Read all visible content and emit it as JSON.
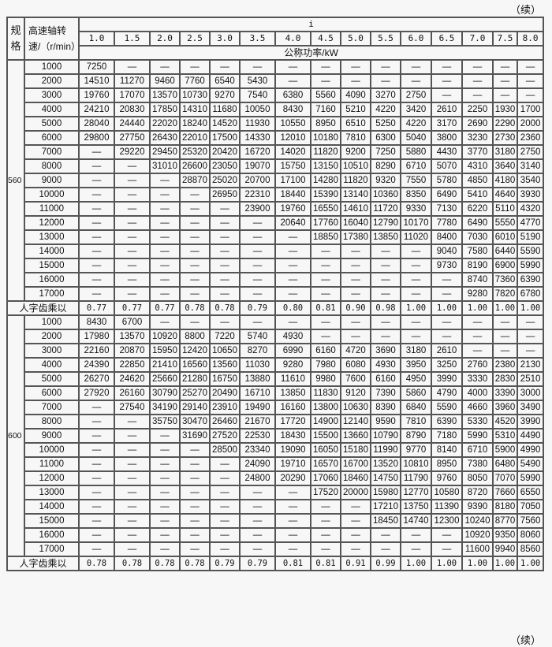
{
  "continued_label": "（续）",
  "header": {
    "spec": "规格",
    "speed": "高速轴转速/（r/min）",
    "ratio_symbol": "i",
    "ratios": [
      "1.0",
      "1.5",
      "2.0",
      "2.5",
      "3.0",
      "3.5",
      "4.0",
      "4.5",
      "5.0",
      "5.5",
      "6.0",
      "6.5",
      "7.0",
      "7.5",
      "8.0"
    ],
    "power_unit": "公称功率/kW"
  },
  "sections": [
    {
      "spec": "560",
      "rows": [
        {
          "speed": "1000",
          "values": [
            "7250",
            "—",
            "—",
            "—",
            "—",
            "—",
            "—",
            "—",
            "—",
            "—",
            "—",
            "—",
            "—",
            "—",
            "—"
          ]
        },
        {
          "speed": "2000",
          "values": [
            "14510",
            "11270",
            "9460",
            "7760",
            "6540",
            "5430",
            "—",
            "—",
            "—",
            "—",
            "—",
            "—",
            "—",
            "—",
            "—"
          ]
        },
        {
          "speed": "3000",
          "values": [
            "19760",
            "17070",
            "13570",
            "10730",
            "9270",
            "7540",
            "6380",
            "5560",
            "4090",
            "3270",
            "2750",
            "—",
            "—",
            "—",
            "—"
          ]
        },
        {
          "speed": "4000",
          "values": [
            "24210",
            "20830",
            "17850",
            "14310",
            "11680",
            "10050",
            "8430",
            "7160",
            "5210",
            "4220",
            "3420",
            "2610",
            "2250",
            "1930",
            "1700"
          ]
        },
        {
          "speed": "5000",
          "values": [
            "28040",
            "24440",
            "22020",
            "18240",
            "14520",
            "11930",
            "10550",
            "8950",
            "6510",
            "5250",
            "4220",
            "3170",
            "2690",
            "2290",
            "2000"
          ]
        },
        {
          "speed": "6000",
          "values": [
            "29800",
            "27750",
            "26430",
            "22010",
            "17500",
            "14330",
            "12010",
            "10180",
            "7810",
            "6300",
            "5040",
            "3800",
            "3230",
            "2730",
            "2360"
          ]
        },
        {
          "speed": "7000",
          "values": [
            "—",
            "29220",
            "29450",
            "25320",
            "20420",
            "16720",
            "14020",
            "11820",
            "9200",
            "7250",
            "5880",
            "4430",
            "3770",
            "3180",
            "2750"
          ]
        },
        {
          "speed": "8000",
          "values": [
            "—",
            "—",
            "31010",
            "26600",
            "23050",
            "19070",
            "15750",
            "13150",
            "10510",
            "8290",
            "6710",
            "5070",
            "4310",
            "3640",
            "3140"
          ]
        },
        {
          "speed": "9000",
          "values": [
            "—",
            "—",
            "—",
            "28870",
            "25020",
            "20700",
            "17100",
            "14280",
            "11820",
            "9320",
            "7550",
            "5780",
            "4850",
            "4180",
            "3540"
          ]
        },
        {
          "speed": "10000",
          "values": [
            "—",
            "—",
            "—",
            "—",
            "26950",
            "22310",
            "18440",
            "15390",
            "13140",
            "10360",
            "8350",
            "6490",
            "5410",
            "4640",
            "3930"
          ]
        },
        {
          "speed": "11000",
          "values": [
            "—",
            "—",
            "—",
            "—",
            "—",
            "23900",
            "19760",
            "16550",
            "14610",
            "11720",
            "9330",
            "7130",
            "6220",
            "5110",
            "4320"
          ]
        },
        {
          "speed": "12000",
          "values": [
            "—",
            "—",
            "—",
            "—",
            "—",
            "—",
            "20640",
            "17760",
            "16040",
            "12790",
            "10170",
            "7780",
            "6490",
            "5550",
            "4770"
          ]
        },
        {
          "speed": "13000",
          "values": [
            "—",
            "—",
            "—",
            "—",
            "—",
            "—",
            "—",
            "18850",
            "17380",
            "13850",
            "11020",
            "8400",
            "7030",
            "6010",
            "5190"
          ]
        },
        {
          "speed": "14000",
          "values": [
            "—",
            "—",
            "—",
            "—",
            "—",
            "—",
            "—",
            "—",
            "—",
            "—",
            "—",
            "9040",
            "7580",
            "6440",
            "5590"
          ]
        },
        {
          "speed": "15000",
          "values": [
            "—",
            "—",
            "—",
            "—",
            "—",
            "—",
            "—",
            "—",
            "—",
            "—",
            "—",
            "9730",
            "8190",
            "6900",
            "5990"
          ]
        },
        {
          "speed": "16000",
          "values": [
            "—",
            "—",
            "—",
            "—",
            "—",
            "—",
            "—",
            "—",
            "—",
            "—",
            "—",
            "—",
            "8740",
            "7360",
            "6390"
          ]
        },
        {
          "speed": "17000",
          "values": [
            "—",
            "—",
            "—",
            "—",
            "—",
            "—",
            "—",
            "—",
            "—",
            "—",
            "—",
            "—",
            "9280",
            "7820",
            "6780"
          ]
        }
      ],
      "factor_label": "人字齿乘以",
      "factors": [
        "0.77",
        "0.77",
        "0.77",
        "0.78",
        "0.78",
        "0.79",
        "0.80",
        "0.81",
        "0.90",
        "0.98",
        "1.00",
        "1.00",
        "1.00",
        "1.00",
        "1.00"
      ]
    },
    {
      "spec": "600",
      "rows": [
        {
          "speed": "1000",
          "values": [
            "8430",
            "6700",
            "—",
            "—",
            "—",
            "—",
            "—",
            "—",
            "—",
            "—",
            "—",
            "—",
            "—",
            "—",
            "—"
          ]
        },
        {
          "speed": "2000",
          "values": [
            "17980",
            "13570",
            "10920",
            "8800",
            "7220",
            "5740",
            "4930",
            "—",
            "—",
            "—",
            "—",
            "—",
            "—",
            "—",
            "—"
          ]
        },
        {
          "speed": "3000",
          "values": [
            "22160",
            "20870",
            "15950",
            "12420",
            "10650",
            "8270",
            "6990",
            "6160",
            "4720",
            "3690",
            "3180",
            "2610",
            "—",
            "—",
            "—"
          ]
        },
        {
          "speed": "4000",
          "values": [
            "24390",
            "22850",
            "21410",
            "16560",
            "13560",
            "11030",
            "9280",
            "7980",
            "6080",
            "4930",
            "3950",
            "3250",
            "2760",
            "2380",
            "2130"
          ]
        },
        {
          "speed": "5000",
          "values": [
            "26270",
            "24620",
            "25660",
            "21280",
            "16750",
            "13880",
            "11610",
            "9980",
            "7600",
            "6160",
            "4950",
            "3990",
            "3330",
            "2830",
            "2510"
          ]
        },
        {
          "speed": "6000",
          "values": [
            "27920",
            "26160",
            "30790",
            "25270",
            "20490",
            "16710",
            "13850",
            "11830",
            "9120",
            "7390",
            "5860",
            "4790",
            "4000",
            "3390",
            "3000"
          ]
        },
        {
          "speed": "7000",
          "values": [
            "—",
            "27540",
            "34190",
            "29140",
            "23910",
            "19490",
            "16160",
            "13800",
            "10630",
            "8390",
            "6840",
            "5590",
            "4660",
            "3960",
            "3490"
          ]
        },
        {
          "speed": "8000",
          "values": [
            "—",
            "—",
            "35750",
            "30470",
            "26460",
            "21670",
            "17720",
            "14900",
            "12140",
            "9590",
            "7810",
            "6390",
            "5330",
            "4520",
            "3990"
          ]
        },
        {
          "speed": "9000",
          "values": [
            "—",
            "—",
            "—",
            "31690",
            "27520",
            "22530",
            "18430",
            "15500",
            "13660",
            "10790",
            "8790",
            "7180",
            "5990",
            "5310",
            "4490"
          ]
        },
        {
          "speed": "10000",
          "values": [
            "—",
            "—",
            "—",
            "—",
            "28500",
            "23340",
            "19090",
            "16050",
            "15180",
            "11990",
            "9770",
            "8140",
            "6710",
            "5900",
            "4990"
          ]
        },
        {
          "speed": "11000",
          "values": [
            "—",
            "—",
            "—",
            "—",
            "—",
            "24090",
            "19710",
            "16570",
            "16700",
            "13520",
            "10810",
            "8950",
            "7380",
            "6480",
            "5490"
          ]
        },
        {
          "speed": "12000",
          "values": [
            "—",
            "—",
            "—",
            "—",
            "—",
            "24800",
            "20290",
            "17060",
            "18460",
            "14750",
            "11790",
            "9760",
            "8050",
            "7070",
            "5990"
          ]
        },
        {
          "speed": "13000",
          "values": [
            "—",
            "—",
            "—",
            "—",
            "—",
            "—",
            "—",
            "17520",
            "20000",
            "15980",
            "12770",
            "10580",
            "8720",
            "7660",
            "6550"
          ]
        },
        {
          "speed": "14000",
          "values": [
            "—",
            "—",
            "—",
            "—",
            "—",
            "—",
            "—",
            "—",
            "—",
            "17210",
            "13750",
            "11390",
            "9390",
            "8180",
            "7050"
          ]
        },
        {
          "speed": "15000",
          "values": [
            "—",
            "—",
            "—",
            "—",
            "—",
            "—",
            "—",
            "—",
            "—",
            "18450",
            "14740",
            "12300",
            "10240",
            "8770",
            "7560"
          ]
        },
        {
          "speed": "16000",
          "values": [
            "—",
            "—",
            "—",
            "—",
            "—",
            "—",
            "—",
            "—",
            "—",
            "—",
            "—",
            "—",
            "10920",
            "9350",
            "8060"
          ]
        },
        {
          "speed": "17000",
          "values": [
            "—",
            "—",
            "—",
            "—",
            "—",
            "—",
            "—",
            "—",
            "—",
            "—",
            "—",
            "—",
            "11600",
            "9940",
            "8560"
          ]
        }
      ],
      "factor_label": "人字齿乘以",
      "factors": [
        "0.78",
        "0.78",
        "0.78",
        "0.78",
        "0.79",
        "0.79",
        "0.81",
        "0.81",
        "0.91",
        "0.99",
        "1.00",
        "1.00",
        "1.00",
        "1.00",
        "1.00"
      ]
    }
  ]
}
